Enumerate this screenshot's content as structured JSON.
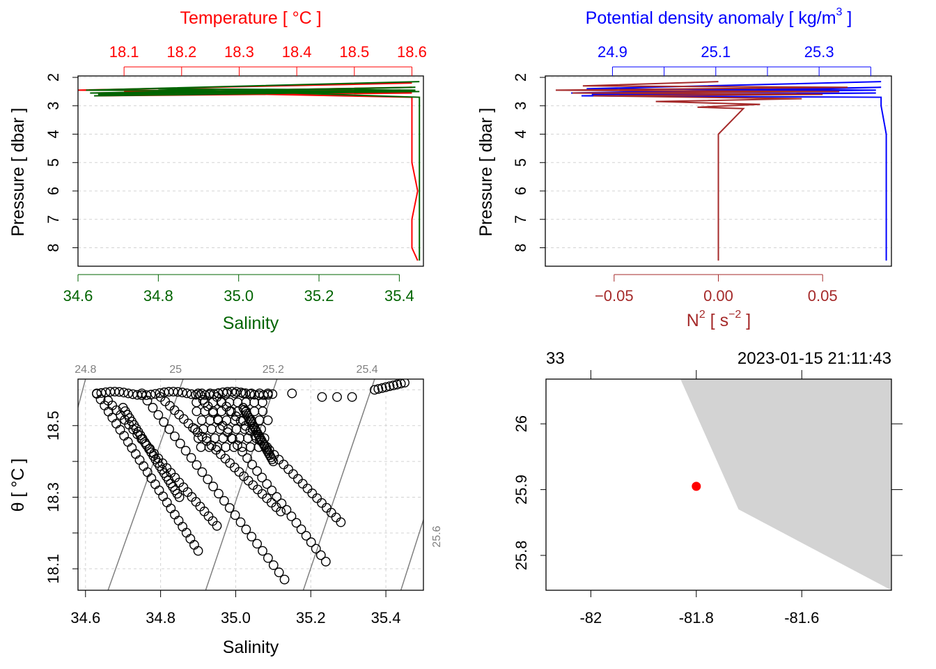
{
  "chart_data": [
    {
      "type": "line",
      "panel": "pressure-profile-TS",
      "top_axis_title": "Temperature [ °C ]",
      "top_ticks": [
        "18.1",
        "18.2",
        "18.3",
        "18.4",
        "18.5",
        "18.6"
      ],
      "bottom_axis_title": "Salinity",
      "bottom_ticks": [
        "34.6",
        "34.8",
        "35.0",
        "35.2",
        "35.4"
      ],
      "ylabel": "Pressure [ dbar ]",
      "y_ticks": [
        "2",
        "3",
        "4",
        "5",
        "6",
        "7",
        "8"
      ],
      "xlim_temperature": [
        18.02,
        18.62
      ],
      "xlim_salinity": [
        34.6,
        35.46
      ],
      "ylim": [
        8.65,
        1.95
      ],
      "grid": true,
      "colors": {
        "temperature": "#ff0000",
        "salinity": "#006400"
      },
      "series": [
        {
          "name": "Temperature",
          "x": [
            18.6,
            18.02,
            18.6,
            18.05,
            18.6,
            18.06,
            18.6,
            18.05,
            18.58,
            18.1,
            18.6,
            18.6,
            18.6,
            18.6,
            18.61,
            18.6,
            18.6,
            18.61
          ],
          "y": [
            2.2,
            2.45,
            2.5,
            2.55,
            2.35,
            2.6,
            2.55,
            2.65,
            2.45,
            2.5,
            2.7,
            3.0,
            4.0,
            5.0,
            6.0,
            7.0,
            8.0,
            8.45
          ]
        },
        {
          "name": "Salinity",
          "x": [
            35.45,
            34.62,
            35.45,
            34.63,
            35.44,
            34.65,
            35.45,
            34.64,
            35.44,
            34.8,
            35.45,
            35.45,
            35.45,
            35.45,
            35.45,
            35.45,
            35.45,
            35.45
          ],
          "y": [
            2.15,
            2.45,
            2.5,
            2.55,
            2.35,
            2.6,
            2.5,
            2.65,
            2.45,
            2.4,
            2.7,
            3.0,
            4.0,
            5.0,
            6.0,
            7.0,
            8.0,
            8.45
          ]
        }
      ]
    },
    {
      "type": "line",
      "panel": "pressure-profile-density",
      "top_axis_title_main": "Potential density anomaly [ kg/m",
      "top_axis_title_sup": "3",
      "top_axis_title_end": " ]",
      "top_ticks": [
        "24.9",
        "25.1",
        "25.3"
      ],
      "bottom_axis_title_main": "N",
      "bottom_axis_title_sup": "2",
      "bottom_axis_title_mid": " [ s",
      "bottom_axis_title_sup2": "−2",
      "bottom_axis_title_end": " ]",
      "bottom_ticks": [
        "-0.05",
        "0.00",
        "0.05"
      ],
      "ylabel": "Pressure [ dbar ]",
      "y_ticks": [
        "2",
        "3",
        "4",
        "5",
        "6",
        "7",
        "8"
      ],
      "xlim_density": [
        24.77,
        25.44
      ],
      "xlim_n2": [
        -0.083,
        0.083
      ],
      "ylim": [
        8.65,
        1.95
      ],
      "grid": true,
      "colors": {
        "density": "#0000ff",
        "n2": "#a52a2a"
      },
      "series": [
        {
          "name": "Potential density anomaly",
          "x": [
            25.42,
            24.85,
            25.41,
            24.82,
            25.42,
            24.86,
            25.41,
            24.84,
            25.42,
            25.42,
            25.43,
            25.43,
            25.43,
            25.43,
            25.43,
            25.43,
            25.43
          ],
          "y": [
            2.15,
            2.4,
            2.45,
            2.55,
            2.35,
            2.6,
            2.55,
            2.65,
            2.7,
            3.0,
            4.0,
            5.0,
            6.0,
            7.0,
            8.0,
            8.45,
            8.45
          ]
        },
        {
          "name": "N2",
          "x": [
            0.0,
            -0.065,
            0.062,
            -0.078,
            0.058,
            -0.07,
            0.05,
            -0.06,
            0.04,
            -0.03,
            0.02,
            -0.01,
            0.012,
            0.0,
            0.0,
            0.0,
            0.0,
            0.0
          ],
          "y": [
            2.15,
            2.3,
            2.35,
            2.45,
            2.5,
            2.55,
            2.6,
            2.65,
            2.75,
            2.85,
            2.95,
            3.05,
            3.1,
            4.0,
            5.0,
            6.0,
            7.0,
            8.45
          ]
        }
      ]
    },
    {
      "type": "scatter",
      "panel": "theta-s-diagram",
      "xlabel": "Salinity",
      "ylabel": "θ [ °C ]",
      "x_ticks": [
        "34.6",
        "34.8",
        "35.0",
        "35.2",
        "35.4"
      ],
      "y_ticks": [
        "18.1",
        "18.3",
        "18.5"
      ],
      "xlim": [
        34.58,
        35.5
      ],
      "ylim": [
        18.04,
        18.63
      ],
      "grid": true,
      "isopycnal_labels": [
        "24.8",
        "25",
        "25.2",
        "25.4",
        "25.6"
      ],
      "isopycnal_color": "#808080",
      "point_style": "open-circle",
      "clusters": [
        {
          "s0": 34.63,
          "t0": 18.59,
          "s1": 34.9,
          "t1": 18.15
        },
        {
          "s0": 34.66,
          "t0": 18.57,
          "s1": 34.95,
          "t1": 18.22
        },
        {
          "s0": 34.75,
          "t0": 18.59,
          "s1": 35.13,
          "t1": 18.07
        },
        {
          "s0": 34.8,
          "t0": 18.58,
          "s1": 35.12,
          "t1": 18.26
        },
        {
          "s0": 34.9,
          "t0": 18.59,
          "s1": 35.24,
          "t1": 18.12
        },
        {
          "s0": 34.95,
          "t0": 18.58,
          "s1": 35.28,
          "t1": 18.23
        },
        {
          "s0": 35.02,
          "t0": 18.55,
          "s1": 35.1,
          "t1": 18.4
        },
        {
          "s0": 34.7,
          "t0": 18.55,
          "s1": 34.85,
          "t1": 18.3
        }
      ],
      "top_row": {
        "s": [
          34.63,
          35.1
        ],
        "t": 18.59
      },
      "cluster_tail": {
        "s": [
          35.37,
          35.45
        ],
        "t": [
          18.6,
          18.62
        ]
      },
      "scattered": [
        [
          35.15,
          18.59
        ],
        [
          35.23,
          18.58
        ],
        [
          35.27,
          18.58
        ],
        [
          35.31,
          18.58
        ]
      ]
    },
    {
      "type": "scatter",
      "panel": "station-map",
      "x_ticks": [
        "-82",
        "-81.8",
        "-81.6"
      ],
      "y_ticks": [
        "25.8",
        "25.9",
        "26"
      ],
      "top_labels": [
        "33",
        "2023-01-15 21:11:43"
      ],
      "xlim": [
        -82.085,
        -81.43
      ],
      "ylim": [
        25.747,
        26.068
      ],
      "station": {
        "lon": -81.8,
        "lat": 25.905
      },
      "colors": {
        "station": "#ff0000",
        "land": "#d3d3d3"
      }
    }
  ]
}
